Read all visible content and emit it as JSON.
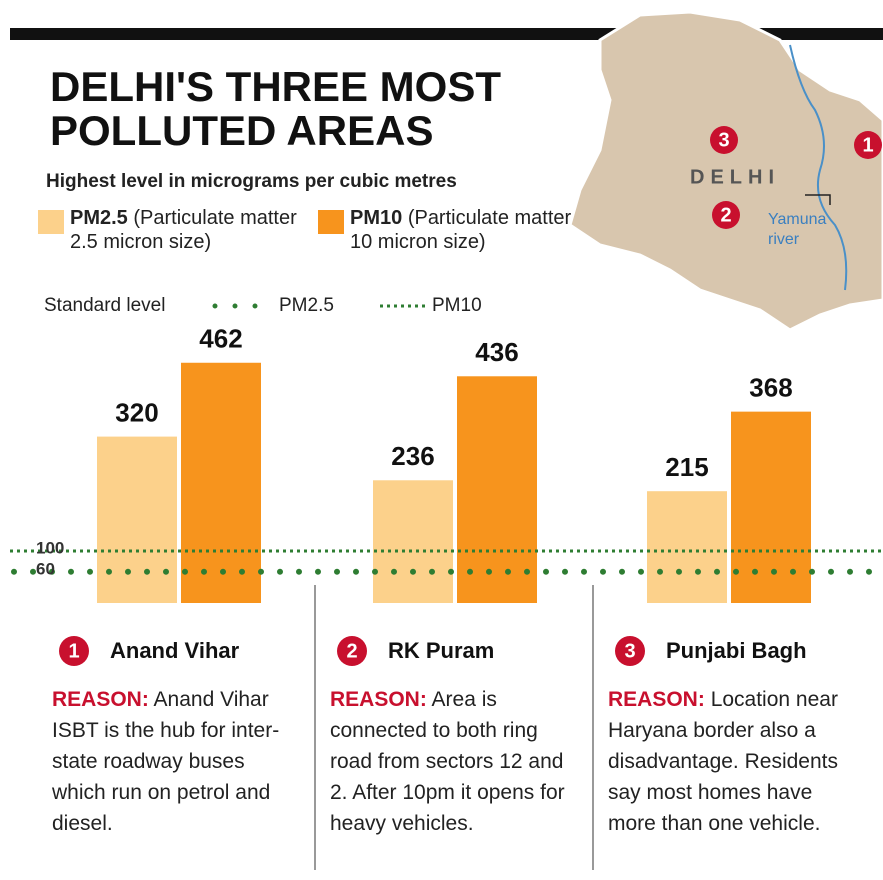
{
  "chart_data": {
    "type": "bar",
    "title": [
      "DELHI'S THREE MOST",
      "POLLUTED AREAS"
    ],
    "subtitle": "Highest level in micrograms per cubic metres",
    "categories": [
      "Anand Vihar",
      "RK Puram",
      "Punjabi Bagh"
    ],
    "category_numbers": [
      1,
      2,
      3
    ],
    "series": [
      {
        "name": "PM2.5",
        "description": "(Particulate matter 2.5 micron size)",
        "color": "#fcd18b",
        "values": [
          320,
          236,
          215
        ]
      },
      {
        "name": "PM10",
        "description": "(Particulate matter 10 micron size)",
        "color": "#f7941d",
        "values": [
          462,
          436,
          368
        ]
      }
    ],
    "ylim": [
      0,
      500
    ],
    "standard_levels": {
      "label": "Standard level",
      "color": "#2e7d32",
      "lines": [
        {
          "name": "PM2.5",
          "value": 60,
          "style": "dots"
        },
        {
          "name": "PM10",
          "value": 100,
          "style": "dotted"
        }
      ]
    },
    "reason_label": "REASON:",
    "reasons": [
      "Anand Vihar ISBT is the hub for inter-state roadway buses which run on petrol and diesel.",
      "Area is connected to both ring road from sectors 12 and 2. After 10pm it opens for heavy vehicles.",
      "Location near Haryana border also a disadvantage. Residents say most homes have more than one vehicle."
    ]
  },
  "map": {
    "label": "DELHI",
    "river": [
      "Yamuna",
      "river"
    ],
    "markers": [
      3,
      2,
      1
    ]
  }
}
